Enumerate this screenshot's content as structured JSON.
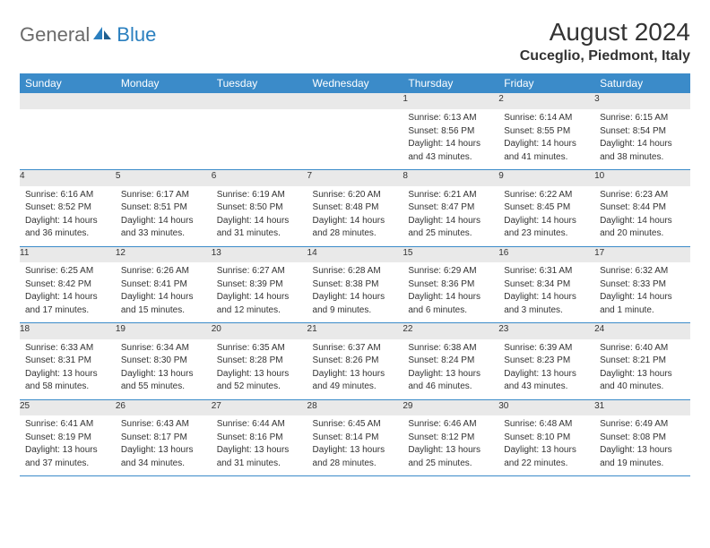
{
  "logo": {
    "text1": "General",
    "text2": "Blue"
  },
  "title": "August 2024",
  "location": "Cuceglio, Piedmont, Italy",
  "colors": {
    "header_bg": "#3b8bc9",
    "header_text": "#ffffff",
    "daynum_bg": "#e9e9e9",
    "rule": "#3b8bc9",
    "body_text": "#333333"
  },
  "weekdays": [
    "Sunday",
    "Monday",
    "Tuesday",
    "Wednesday",
    "Thursday",
    "Friday",
    "Saturday"
  ],
  "weeks": [
    [
      null,
      null,
      null,
      null,
      {
        "n": "1",
        "sr": "Sunrise: 6:13 AM",
        "ss": "Sunset: 8:56 PM",
        "d1": "Daylight: 14 hours",
        "d2": "and 43 minutes."
      },
      {
        "n": "2",
        "sr": "Sunrise: 6:14 AM",
        "ss": "Sunset: 8:55 PM",
        "d1": "Daylight: 14 hours",
        "d2": "and 41 minutes."
      },
      {
        "n": "3",
        "sr": "Sunrise: 6:15 AM",
        "ss": "Sunset: 8:54 PM",
        "d1": "Daylight: 14 hours",
        "d2": "and 38 minutes."
      }
    ],
    [
      {
        "n": "4",
        "sr": "Sunrise: 6:16 AM",
        "ss": "Sunset: 8:52 PM",
        "d1": "Daylight: 14 hours",
        "d2": "and 36 minutes."
      },
      {
        "n": "5",
        "sr": "Sunrise: 6:17 AM",
        "ss": "Sunset: 8:51 PM",
        "d1": "Daylight: 14 hours",
        "d2": "and 33 minutes."
      },
      {
        "n": "6",
        "sr": "Sunrise: 6:19 AM",
        "ss": "Sunset: 8:50 PM",
        "d1": "Daylight: 14 hours",
        "d2": "and 31 minutes."
      },
      {
        "n": "7",
        "sr": "Sunrise: 6:20 AM",
        "ss": "Sunset: 8:48 PM",
        "d1": "Daylight: 14 hours",
        "d2": "and 28 minutes."
      },
      {
        "n": "8",
        "sr": "Sunrise: 6:21 AM",
        "ss": "Sunset: 8:47 PM",
        "d1": "Daylight: 14 hours",
        "d2": "and 25 minutes."
      },
      {
        "n": "9",
        "sr": "Sunrise: 6:22 AM",
        "ss": "Sunset: 8:45 PM",
        "d1": "Daylight: 14 hours",
        "d2": "and 23 minutes."
      },
      {
        "n": "10",
        "sr": "Sunrise: 6:23 AM",
        "ss": "Sunset: 8:44 PM",
        "d1": "Daylight: 14 hours",
        "d2": "and 20 minutes."
      }
    ],
    [
      {
        "n": "11",
        "sr": "Sunrise: 6:25 AM",
        "ss": "Sunset: 8:42 PM",
        "d1": "Daylight: 14 hours",
        "d2": "and 17 minutes."
      },
      {
        "n": "12",
        "sr": "Sunrise: 6:26 AM",
        "ss": "Sunset: 8:41 PM",
        "d1": "Daylight: 14 hours",
        "d2": "and 15 minutes."
      },
      {
        "n": "13",
        "sr": "Sunrise: 6:27 AM",
        "ss": "Sunset: 8:39 PM",
        "d1": "Daylight: 14 hours",
        "d2": "and 12 minutes."
      },
      {
        "n": "14",
        "sr": "Sunrise: 6:28 AM",
        "ss": "Sunset: 8:38 PM",
        "d1": "Daylight: 14 hours",
        "d2": "and 9 minutes."
      },
      {
        "n": "15",
        "sr": "Sunrise: 6:29 AM",
        "ss": "Sunset: 8:36 PM",
        "d1": "Daylight: 14 hours",
        "d2": "and 6 minutes."
      },
      {
        "n": "16",
        "sr": "Sunrise: 6:31 AM",
        "ss": "Sunset: 8:34 PM",
        "d1": "Daylight: 14 hours",
        "d2": "and 3 minutes."
      },
      {
        "n": "17",
        "sr": "Sunrise: 6:32 AM",
        "ss": "Sunset: 8:33 PM",
        "d1": "Daylight: 14 hours",
        "d2": "and 1 minute."
      }
    ],
    [
      {
        "n": "18",
        "sr": "Sunrise: 6:33 AM",
        "ss": "Sunset: 8:31 PM",
        "d1": "Daylight: 13 hours",
        "d2": "and 58 minutes."
      },
      {
        "n": "19",
        "sr": "Sunrise: 6:34 AM",
        "ss": "Sunset: 8:30 PM",
        "d1": "Daylight: 13 hours",
        "d2": "and 55 minutes."
      },
      {
        "n": "20",
        "sr": "Sunrise: 6:35 AM",
        "ss": "Sunset: 8:28 PM",
        "d1": "Daylight: 13 hours",
        "d2": "and 52 minutes."
      },
      {
        "n": "21",
        "sr": "Sunrise: 6:37 AM",
        "ss": "Sunset: 8:26 PM",
        "d1": "Daylight: 13 hours",
        "d2": "and 49 minutes."
      },
      {
        "n": "22",
        "sr": "Sunrise: 6:38 AM",
        "ss": "Sunset: 8:24 PM",
        "d1": "Daylight: 13 hours",
        "d2": "and 46 minutes."
      },
      {
        "n": "23",
        "sr": "Sunrise: 6:39 AM",
        "ss": "Sunset: 8:23 PM",
        "d1": "Daylight: 13 hours",
        "d2": "and 43 minutes."
      },
      {
        "n": "24",
        "sr": "Sunrise: 6:40 AM",
        "ss": "Sunset: 8:21 PM",
        "d1": "Daylight: 13 hours",
        "d2": "and 40 minutes."
      }
    ],
    [
      {
        "n": "25",
        "sr": "Sunrise: 6:41 AM",
        "ss": "Sunset: 8:19 PM",
        "d1": "Daylight: 13 hours",
        "d2": "and 37 minutes."
      },
      {
        "n": "26",
        "sr": "Sunrise: 6:43 AM",
        "ss": "Sunset: 8:17 PM",
        "d1": "Daylight: 13 hours",
        "d2": "and 34 minutes."
      },
      {
        "n": "27",
        "sr": "Sunrise: 6:44 AM",
        "ss": "Sunset: 8:16 PM",
        "d1": "Daylight: 13 hours",
        "d2": "and 31 minutes."
      },
      {
        "n": "28",
        "sr": "Sunrise: 6:45 AM",
        "ss": "Sunset: 8:14 PM",
        "d1": "Daylight: 13 hours",
        "d2": "and 28 minutes."
      },
      {
        "n": "29",
        "sr": "Sunrise: 6:46 AM",
        "ss": "Sunset: 8:12 PM",
        "d1": "Daylight: 13 hours",
        "d2": "and 25 minutes."
      },
      {
        "n": "30",
        "sr": "Sunrise: 6:48 AM",
        "ss": "Sunset: 8:10 PM",
        "d1": "Daylight: 13 hours",
        "d2": "and 22 minutes."
      },
      {
        "n": "31",
        "sr": "Sunrise: 6:49 AM",
        "ss": "Sunset: 8:08 PM",
        "d1": "Daylight: 13 hours",
        "d2": "and 19 minutes."
      }
    ]
  ]
}
